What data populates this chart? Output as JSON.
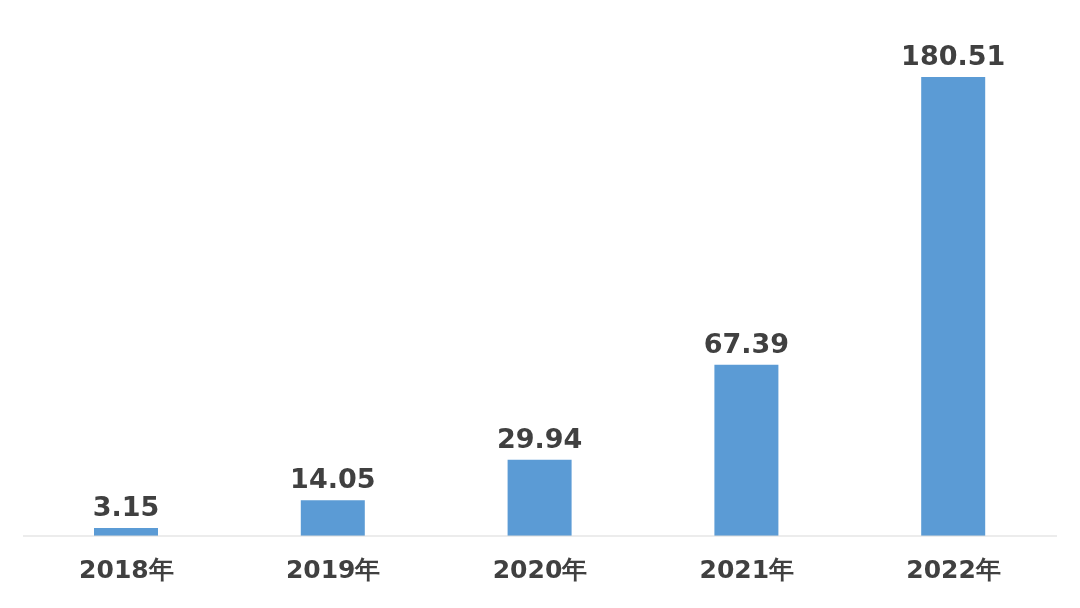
{
  "chart_data": {
    "type": "bar",
    "categories": [
      "2018年",
      "2019年",
      "2020年",
      "2021年",
      "2022年"
    ],
    "values": [
      3.15,
      14.05,
      29.94,
      67.39,
      180.51
    ],
    "color": "#5b9bd5",
    "data_labels": true,
    "grid": false,
    "legend": false
  }
}
